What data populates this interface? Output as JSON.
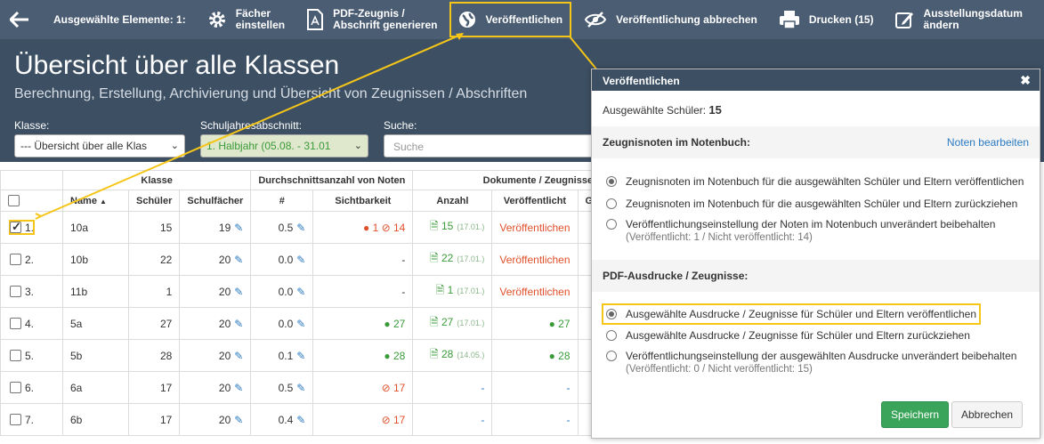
{
  "toolbar": {
    "selected_label": "Ausgewählte Elemente: 1:",
    "faecher_line1": "Fächer",
    "faecher_line2": "einstellen",
    "pdf_line1": "PDF-Zeugnis /",
    "pdf_line2": "Abschrift generieren",
    "publish": "Veröffentlichen",
    "cancel_publish": "Veröffentlichung abbrechen",
    "print": "Drucken (15)",
    "date_line1": "Ausstellungsdatum",
    "date_line2": "ändern"
  },
  "header": {
    "title": "Übersicht über alle Klassen",
    "subtitle": "Berechnung, Erstellung, Archivierung und Übersicht von Zeugnissen / Abschriften",
    "klasse_label": "Klasse:",
    "klasse_value": "--- Übersicht über alle Klas",
    "abschnitt_label": "Schuljahresabschnitt:",
    "abschnitt_value": "1. Halbjahr (05.08. - 31.01",
    "suche_label": "Suche:",
    "suche_placeholder": "Suche"
  },
  "table": {
    "group_headers": {
      "klasse": "Klasse",
      "noten": "Durchschnittsanzahl von Noten",
      "dokumente": "Dokumente / Zeugnisse /"
    },
    "columns": {
      "name": "Name",
      "schueler": "Schüler",
      "schulfaecher": "Schulfächer",
      "hash": "#",
      "sichtbarkeit": "Sichtbarkeit",
      "anzahl": "Anzahl",
      "veroeffentlicht": "Veröffentlicht",
      "ge": "Ge"
    },
    "rows": [
      {
        "nr": "1.",
        "name": "10a",
        "schueler": "15",
        "faecher": "19",
        "avg": "0.5",
        "vis_red": "1",
        "vis_hidden": "14",
        "vis_green": "",
        "vis_dash": "",
        "anzahl": "15",
        "anzahl_date": "(17.01.)",
        "pub": "Veröffentlichen",
        "pub_green": "",
        "checked": true
      },
      {
        "nr": "2.",
        "name": "10b",
        "schueler": "22",
        "faecher": "20",
        "avg": "0.0",
        "vis_red": "",
        "vis_hidden": "",
        "vis_green": "",
        "vis_dash": "-",
        "anzahl": "22",
        "anzahl_date": "(17.01.)",
        "pub": "Veröffentlichen",
        "pub_green": "",
        "checked": false
      },
      {
        "nr": "3.",
        "name": "11b",
        "schueler": "1",
        "faecher": "20",
        "avg": "0.0",
        "vis_red": "",
        "vis_hidden": "",
        "vis_green": "",
        "vis_dash": "-",
        "anzahl": "1",
        "anzahl_date": "(17.01.)",
        "pub": "Veröffentlichen",
        "pub_green": "",
        "checked": false
      },
      {
        "nr": "4.",
        "name": "5a",
        "schueler": "27",
        "faecher": "20",
        "avg": "0.0",
        "vis_red": "",
        "vis_hidden": "",
        "vis_green": "27",
        "vis_dash": "",
        "anzahl": "27",
        "anzahl_date": "(17.01.)",
        "pub": "",
        "pub_green": "27",
        "checked": false
      },
      {
        "nr": "5.",
        "name": "5b",
        "schueler": "28",
        "faecher": "20",
        "avg": "0.1",
        "vis_red": "",
        "vis_hidden": "",
        "vis_green": "28",
        "vis_dash": "",
        "anzahl": "28",
        "anzahl_date": "(14.05.)",
        "pub": "",
        "pub_green": "28",
        "checked": false
      },
      {
        "nr": "6.",
        "name": "6a",
        "schueler": "17",
        "faecher": "20",
        "avg": "0.5",
        "vis_red": "",
        "vis_hidden": "17",
        "vis_green": "",
        "vis_dash": "",
        "anzahl": "-",
        "anzahl_date": "",
        "pub": "-",
        "pub_green": "",
        "checked": false
      },
      {
        "nr": "7.",
        "name": "6b",
        "schueler": "17",
        "faecher": "20",
        "avg": "0.4",
        "vis_red": "",
        "vis_hidden": "17",
        "vis_green": "",
        "vis_dash": "",
        "anzahl": "-",
        "anzahl_date": "",
        "pub": "-",
        "pub_green": "",
        "checked": false
      }
    ]
  },
  "modal": {
    "title": "Veröffentlichen",
    "count_label": "Ausgewählte Schüler:",
    "count_value": "15",
    "section1": "Zeugnisnoten im Notenbuch:",
    "section1_link": "Noten bearbeiten",
    "opt1a": "Zeugnisnoten im Notenbuch für die ausgewählten Schüler und Eltern veröffentlichen",
    "opt1b": "Zeugnisnoten im Notenbuch für die ausgewählten Schüler und Eltern zurückziehen",
    "opt1c": "Veröffentlichungseinstellung der Noten im Notenbuch unverändert beibehalten",
    "opt1c_note": "(Veröffentlicht: 1 / Nicht veröffentlicht: 14)",
    "section2": "PDF-Ausdrucke / Zeugnisse:",
    "opt2a": "Ausgewählte Ausdrucke / Zeugnisse für Schüler und Eltern veröffentlichen",
    "opt2b": "Ausgewählte Ausdrucke / Zeugnisse für Schüler und Eltern zurückziehen",
    "opt2c": "Veröffentlichungseinstellung der ausgewählten Ausdrucke unverändert beibehalten",
    "opt2c_note": "(Veröffentlicht: 0 / Nicht veröffentlicht: 15)",
    "save": "Speichern",
    "cancel": "Abbrechen"
  },
  "colors": {
    "toolbar": "#4b5d73",
    "header": "#3d4f63",
    "highlight": "#f5c518",
    "save_green": "#3aa45a",
    "red": "#e0502b",
    "green": "#3a9b3a",
    "link_blue": "#2a7ac2"
  }
}
